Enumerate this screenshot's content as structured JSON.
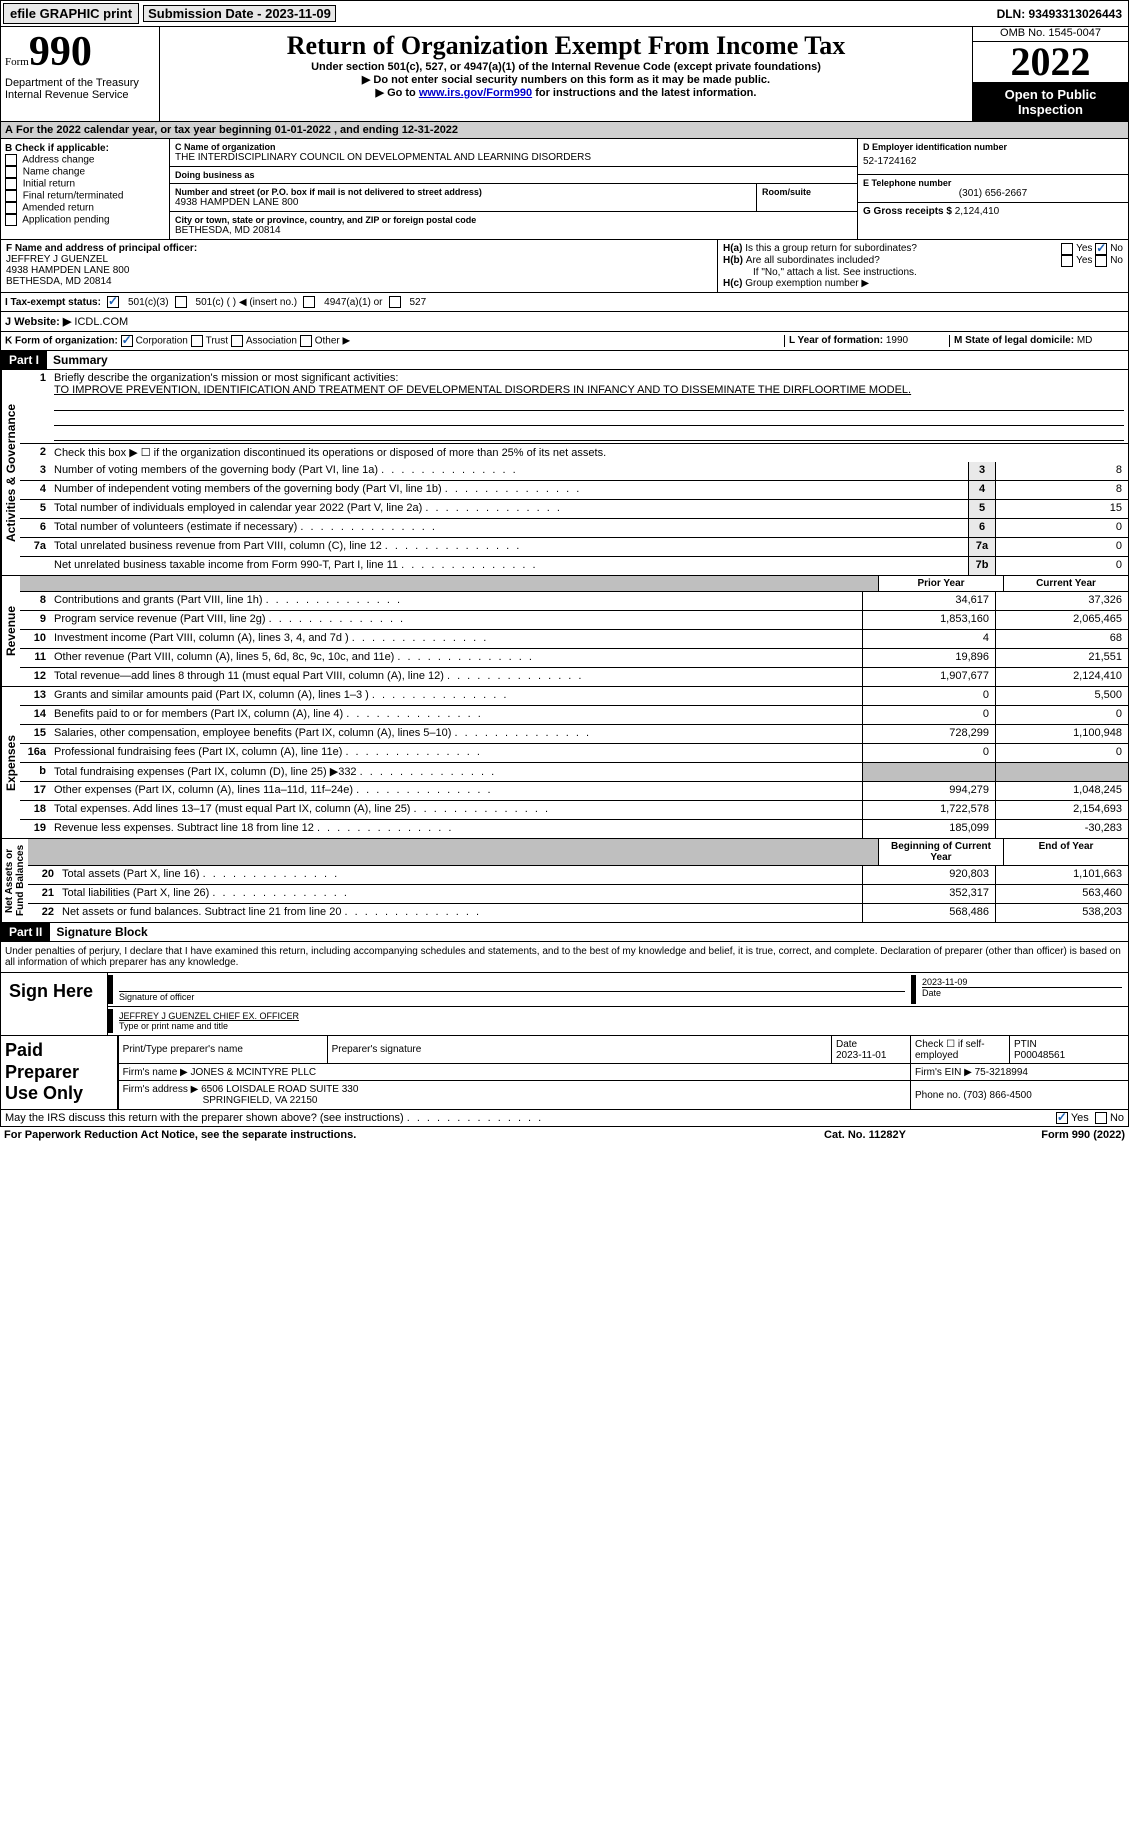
{
  "topbar": {
    "efile": "efile GRAPHIC print",
    "sub": "Submission Date - 2023-11-09",
    "dln": "DLN: 93493313026443"
  },
  "header": {
    "form_sm": "Form",
    "form_lg": "990",
    "dept": "Department of the Treasury Internal Revenue Service",
    "title": "Return of Organization Exempt From Income Tax",
    "sub": "Under section 501(c), 527, or 4947(a)(1) of the Internal Revenue Code (except private foundations)",
    "note1": "▶ Do not enter social security numbers on this form as it may be made public.",
    "note2a": "▶ Go to ",
    "note2link": "www.irs.gov/Form990",
    "note2b": " for instructions and the latest information.",
    "omb": "OMB No. 1545-0047",
    "year": "2022",
    "inspect": "Open to Public Inspection"
  },
  "A": {
    "text": "For the 2022 calendar year, or tax year beginning 01-01-2022    , and ending 12-31-2022"
  },
  "B": {
    "hdr": "B Check if applicable:",
    "items": [
      "Address change",
      "Name change",
      "Initial return",
      "Final return/terminated",
      "Amended return",
      "Application pending"
    ]
  },
  "C": {
    "lbl": "C Name of organization",
    "name": "THE INTERDISCIPLINARY COUNCIL ON DEVELOPMENTAL AND LEARNING DISORDERS",
    "dba_lbl": "Doing business as",
    "dba": "",
    "addr_lbl": "Number and street (or P.O. box if mail is not delivered to street address)",
    "room_lbl": "Room/suite",
    "addr": "4938 HAMPDEN LANE 800",
    "city_lbl": "City or town, state or province, country, and ZIP or foreign postal code",
    "city": "BETHESDA, MD  20814"
  },
  "D": {
    "lbl": "D Employer identification number",
    "val": "52-1724162"
  },
  "E": {
    "lbl": "E Telephone number",
    "val": "(301) 656-2667"
  },
  "G": {
    "lbl": "G Gross receipts $",
    "val": "2,124,410"
  },
  "F": {
    "lbl": "F  Name and address of principal officer:",
    "name": "JEFFREY J GUENZEL",
    "addr": "4938 HAMPDEN LANE 800",
    "city": "BETHESDA, MD  20814"
  },
  "H": {
    "a": "Is this a group return for subordinates?",
    "a_yes": "Yes",
    "a_no": "No",
    "b": "Are all subordinates included?",
    "b_note": "If \"No,\" attach a list. See instructions.",
    "c": "Group exemption number ▶"
  },
  "I": {
    "lbl": "I   Tax-exempt status:",
    "o1": "501(c)(3)",
    "o2": "501(c) (   ) ◀ (insert no.)",
    "o3": "4947(a)(1) or",
    "o4": "527"
  },
  "J": {
    "lbl": "J   Website: ▶",
    "val": "ICDL.COM"
  },
  "K": {
    "lbl": "K Form of organization:",
    "o1": "Corporation",
    "o2": "Trust",
    "o3": "Association",
    "o4": "Other ▶"
  },
  "L": {
    "lbl": "L Year of formation:",
    "val": "1990"
  },
  "M": {
    "lbl": "M State of legal domicile:",
    "val": "MD"
  },
  "part1": {
    "label": "Part I",
    "title": "Summary"
  },
  "summary": {
    "l1": "Briefly describe the organization's mission or most significant activities:",
    "mission": "TO IMPROVE PREVENTION, IDENTIFICATION AND TREATMENT OF DEVELOPMENTAL DISORDERS IN INFANCY AND TO DISSEMINATE THE DIRFLOORTIME MODEL.",
    "l2": "Check this box ▶ ☐  if the organization discontinued its operations or disposed of more than 25% of its net assets.",
    "rows_gov": [
      {
        "n": "3",
        "d": "Number of voting members of the governing body (Part VI, line 1a)",
        "box": "3",
        "v": "8"
      },
      {
        "n": "4",
        "d": "Number of independent voting members of the governing body (Part VI, line 1b)",
        "box": "4",
        "v": "8"
      },
      {
        "n": "5",
        "d": "Total number of individuals employed in calendar year 2022 (Part V, line 2a)",
        "box": "5",
        "v": "15"
      },
      {
        "n": "6",
        "d": "Total number of volunteers (estimate if necessary)",
        "box": "6",
        "v": "0"
      },
      {
        "n": "7a",
        "d": "Total unrelated business revenue from Part VIII, column (C), line 12",
        "box": "7a",
        "v": "0"
      },
      {
        "n": "",
        "d": "Net unrelated business taxable income from Form 990-T, Part I, line 11",
        "box": "7b",
        "v": "0"
      }
    ],
    "hdr_rev": {
      "c1": "Prior Year",
      "c2": "Current Year"
    },
    "rows_rev": [
      {
        "n": "8",
        "d": "Contributions and grants (Part VIII, line 1h)",
        "v1": "34,617",
        "v2": "37,326"
      },
      {
        "n": "9",
        "d": "Program service revenue (Part VIII, line 2g)",
        "v1": "1,853,160",
        "v2": "2,065,465"
      },
      {
        "n": "10",
        "d": "Investment income (Part VIII, column (A), lines 3, 4, and 7d )",
        "v1": "4",
        "v2": "68"
      },
      {
        "n": "11",
        "d": "Other revenue (Part VIII, column (A), lines 5, 6d, 8c, 9c, 10c, and 11e)",
        "v1": "19,896",
        "v2": "21,551"
      },
      {
        "n": "12",
        "d": "Total revenue—add lines 8 through 11 (must equal Part VIII, column (A), line 12)",
        "v1": "1,907,677",
        "v2": "2,124,410"
      }
    ],
    "rows_exp": [
      {
        "n": "13",
        "d": "Grants and similar amounts paid (Part IX, column (A), lines 1–3 )",
        "v1": "0",
        "v2": "5,500"
      },
      {
        "n": "14",
        "d": "Benefits paid to or for members (Part IX, column (A), line 4)",
        "v1": "0",
        "v2": "0"
      },
      {
        "n": "15",
        "d": "Salaries, other compensation, employee benefits (Part IX, column (A), lines 5–10)",
        "v1": "728,299",
        "v2": "1,100,948"
      },
      {
        "n": "16a",
        "d": "Professional fundraising fees (Part IX, column (A), line 11e)",
        "v1": "0",
        "v2": "0"
      },
      {
        "n": "b",
        "d": "Total fundraising expenses (Part IX, column (D), line 25) ▶332",
        "v1": "",
        "v2": "",
        "sh": true
      },
      {
        "n": "17",
        "d": "Other expenses (Part IX, column (A), lines 11a–11d, 11f–24e)",
        "v1": "994,279",
        "v2": "1,048,245"
      },
      {
        "n": "18",
        "d": "Total expenses. Add lines 13–17 (must equal Part IX, column (A), line 25)",
        "v1": "1,722,578",
        "v2": "2,154,693"
      },
      {
        "n": "19",
        "d": "Revenue less expenses. Subtract line 18 from line 12",
        "v1": "185,099",
        "v2": "-30,283"
      }
    ],
    "hdr_net": {
      "c1": "Beginning of Current Year",
      "c2": "End of Year"
    },
    "rows_net": [
      {
        "n": "20",
        "d": "Total assets (Part X, line 16)",
        "v1": "920,803",
        "v2": "1,101,663"
      },
      {
        "n": "21",
        "d": "Total liabilities (Part X, line 26)",
        "v1": "352,317",
        "v2": "563,460"
      },
      {
        "n": "22",
        "d": "Net assets or fund balances. Subtract line 21 from line 20",
        "v1": "568,486",
        "v2": "538,203"
      }
    ]
  },
  "part2": {
    "label": "Part II",
    "title": "Signature Block"
  },
  "penalty": "Under penalties of perjury, I declare that I have examined this return, including accompanying schedules and statements, and to the best of my knowledge and belief, it is true, correct, and complete. Declaration of preparer (other than officer) is based on all information of which preparer has any knowledge.",
  "sign": {
    "lab": "Sign Here",
    "date": "2023-11-09",
    "sig_lbl": "Signature of officer",
    "date_lbl": "Date",
    "name": "JEFFREY J GUENZEL CHIEF EX. OFFICER",
    "name_lbl": "Type or print name and title"
  },
  "prep": {
    "lab": "Paid Preparer Use Only",
    "h1": "Print/Type preparer's name",
    "h2": "Preparer's signature",
    "h3": "Date",
    "h3v": "2023-11-01",
    "h4": "Check ☐ if self-employed",
    "h5": "PTIN",
    "h5v": "P00048561",
    "firm_lbl": "Firm's name   ▶",
    "firm": "JONES & MCINTYRE PLLC",
    "ein_lbl": "Firm's EIN ▶",
    "ein": "75-3218994",
    "addr_lbl": "Firm's address ▶",
    "addr1": "6506 LOISDALE ROAD SUITE 330",
    "addr2": "SPRINGFIELD, VA  22150",
    "phone_lbl": "Phone no.",
    "phone": "(703) 866-4500"
  },
  "irsq": {
    "q": "May the IRS discuss this return with the preparer shown above? (see instructions)",
    "yes": "Yes",
    "no": "No"
  },
  "foot": {
    "l": "For Paperwork Reduction Act Notice, see the separate instructions.",
    "c": "Cat. No. 11282Y",
    "r": "Form 990 (2022)"
  }
}
